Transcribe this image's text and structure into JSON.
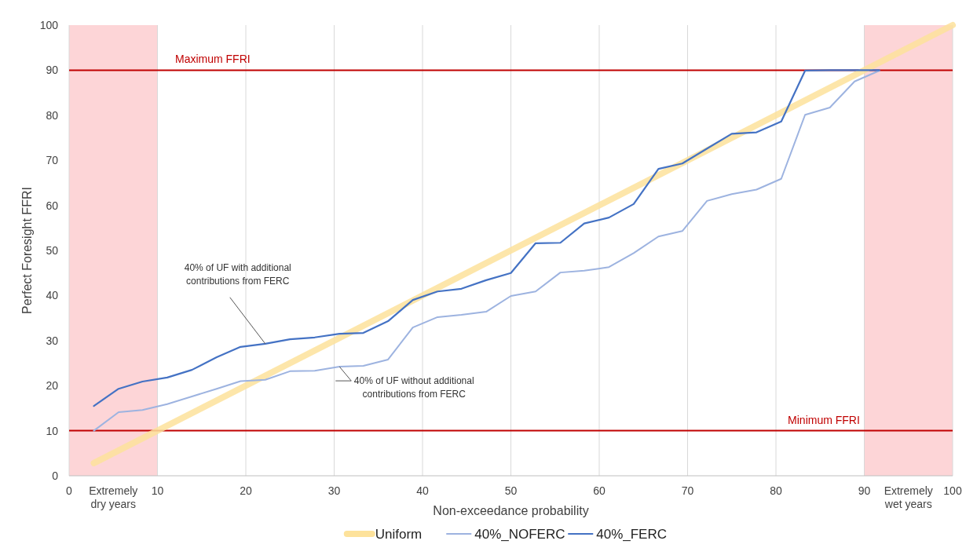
{
  "chart_data": {
    "type": "line",
    "xlabel": "Non-exceedance probability",
    "ylabel": "Perfect Foresight FFRI",
    "xlim": [
      0,
      100
    ],
    "ylim": [
      0,
      100
    ],
    "xticks": [
      0,
      10,
      20,
      30,
      40,
      50,
      60,
      70,
      80,
      90,
      100
    ],
    "yticks": [
      0,
      10,
      20,
      30,
      40,
      50,
      60,
      70,
      80,
      90,
      100
    ],
    "grid": "x",
    "legend": "bottom",
    "line_style": "solid",
    "marker": "none",
    "series": [
      {
        "name": "Uniform",
        "color": "#fde29b",
        "x": [
          2.8,
          100
        ],
        "values": [
          2.8,
          100
        ]
      },
      {
        "name": "40%_NOFERC",
        "color": "#9db3e0",
        "x": [
          2.8,
          5.6,
          8.3,
          11.1,
          13.9,
          16.7,
          19.4,
          22.2,
          25,
          27.8,
          30.6,
          33.3,
          36.1,
          38.9,
          41.7,
          44.4,
          47.2,
          50,
          52.8,
          55.6,
          58.3,
          61.1,
          63.9,
          66.7,
          69.4,
          72.2,
          75,
          77.8,
          80.6,
          83.3,
          86.1,
          88.9,
          91.7
        ],
        "values": [
          10,
          14.1,
          14.6,
          15.9,
          17.6,
          19.3,
          21,
          21.3,
          23.2,
          23.3,
          24.2,
          24.4,
          25.8,
          32.9,
          35.2,
          35.7,
          36.4,
          39.9,
          40.9,
          45.1,
          45.5,
          46.3,
          49.4,
          53.1,
          54.3,
          61,
          62.5,
          63.5,
          65.9,
          80.1,
          81.7,
          87.5,
          89.9
        ]
      },
      {
        "name": "40%_FERC",
        "color": "#4472c4",
        "x": [
          2.8,
          5.6,
          8.3,
          11.1,
          13.9,
          16.7,
          19.4,
          22.2,
          25,
          27.8,
          30.6,
          33.3,
          36.1,
          38.9,
          41.7,
          44.4,
          47.2,
          50,
          52.8,
          55.6,
          58.3,
          61.1,
          63.9,
          66.7,
          69.4,
          72.2,
          75,
          77.8,
          80.6,
          83.3,
          86.1,
          88.9,
          91.7
        ],
        "values": [
          15.5,
          19.3,
          20.9,
          21.8,
          23.5,
          26.3,
          28.6,
          29.3,
          30.3,
          30.7,
          31.5,
          31.7,
          34.3,
          39,
          40.9,
          41.5,
          43.4,
          45,
          51.6,
          51.7,
          56,
          57.3,
          60.3,
          68.1,
          69.3,
          72.6,
          75.9,
          76.2,
          78.6,
          89.9,
          90,
          90,
          90
        ]
      }
    ],
    "ref_lines": [
      {
        "axis": "y",
        "value": 90,
        "label": "Maximum FFRI",
        "color": "#c00000"
      },
      {
        "axis": "y",
        "value": 10,
        "label": "Minimum FFRI",
        "color": "#c00000"
      }
    ],
    "bands": [
      {
        "axis": "x",
        "from": 0,
        "to": 10,
        "label": "Extremely dry years",
        "color": "#fdd5d7"
      },
      {
        "axis": "x",
        "from": 90,
        "to": 100,
        "label": "Extremely wet years",
        "color": "#fdd5d7"
      }
    ],
    "annotations": [
      {
        "text": "40% of UF with additional contributions from FERC",
        "x": 22.2,
        "y": 29.3
      },
      {
        "text": "40% of UF without additional contributions from FERC",
        "x": 30.6,
        "y": 24.2
      }
    ]
  }
}
